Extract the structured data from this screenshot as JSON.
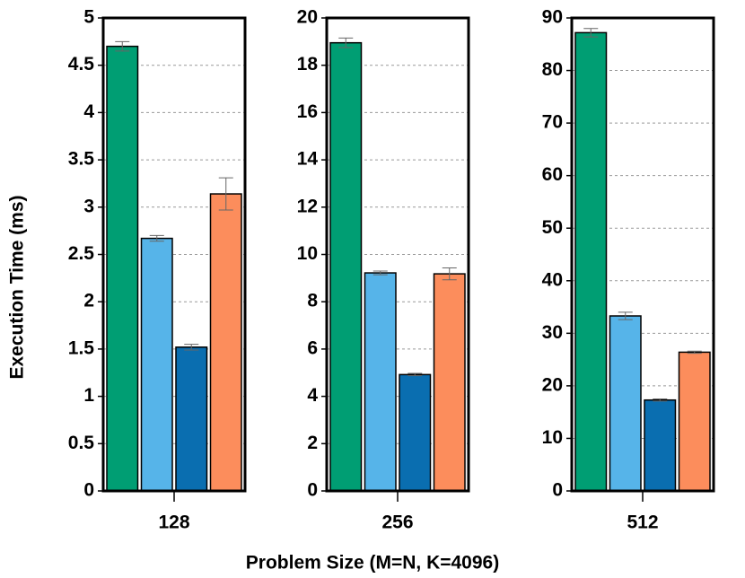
{
  "ylabel": "Execution Time (ms)",
  "xlabel": "Problem Size (M=N, K=4096)",
  "chart_data": [
    {
      "type": "bar",
      "categories": [
        "128"
      ],
      "ylim": [
        0,
        5
      ],
      "yticks": [
        0,
        0.5,
        1,
        1.5,
        2,
        2.5,
        3,
        3.5,
        4,
        4.5,
        5
      ],
      "grid": true,
      "series": [
        {
          "color": "#009e73",
          "values": [
            4.7
          ],
          "errors": [
            0.05
          ]
        },
        {
          "color": "#56b4e9",
          "values": [
            2.67
          ],
          "errors": [
            0.03
          ]
        },
        {
          "color": "#0a6eb0",
          "values": [
            1.52
          ],
          "errors": [
            0.03
          ]
        },
        {
          "color": "#fc8d5c",
          "values": [
            3.14
          ],
          "errors": [
            0.17
          ]
        }
      ]
    },
    {
      "type": "bar",
      "categories": [
        "256"
      ],
      "ylim": [
        0,
        20
      ],
      "yticks": [
        0,
        2,
        4,
        6,
        8,
        10,
        12,
        14,
        16,
        18,
        20
      ],
      "grid": true,
      "series": [
        {
          "color": "#009e73",
          "values": [
            18.95
          ],
          "errors": [
            0.2
          ]
        },
        {
          "color": "#56b4e9",
          "values": [
            9.22
          ],
          "errors": [
            0.08
          ]
        },
        {
          "color": "#0a6eb0",
          "values": [
            4.92
          ],
          "errors": [
            0.05
          ]
        },
        {
          "color": "#fc8d5c",
          "values": [
            9.18
          ],
          "errors": [
            0.25
          ]
        }
      ]
    },
    {
      "type": "bar",
      "categories": [
        "512"
      ],
      "ylim": [
        0,
        90
      ],
      "yticks": [
        0,
        10,
        20,
        30,
        40,
        50,
        60,
        70,
        80,
        90
      ],
      "grid": true,
      "series": [
        {
          "color": "#009e73",
          "values": [
            87.2
          ],
          "errors": [
            0.8
          ]
        },
        {
          "color": "#56b4e9",
          "values": [
            33.3
          ],
          "errors": [
            0.7
          ]
        },
        {
          "color": "#0a6eb0",
          "values": [
            17.3
          ],
          "errors": [
            0.2
          ]
        },
        {
          "color": "#fc8d5c",
          "values": [
            26.4
          ],
          "errors": [
            0.2
          ]
        }
      ]
    }
  ]
}
